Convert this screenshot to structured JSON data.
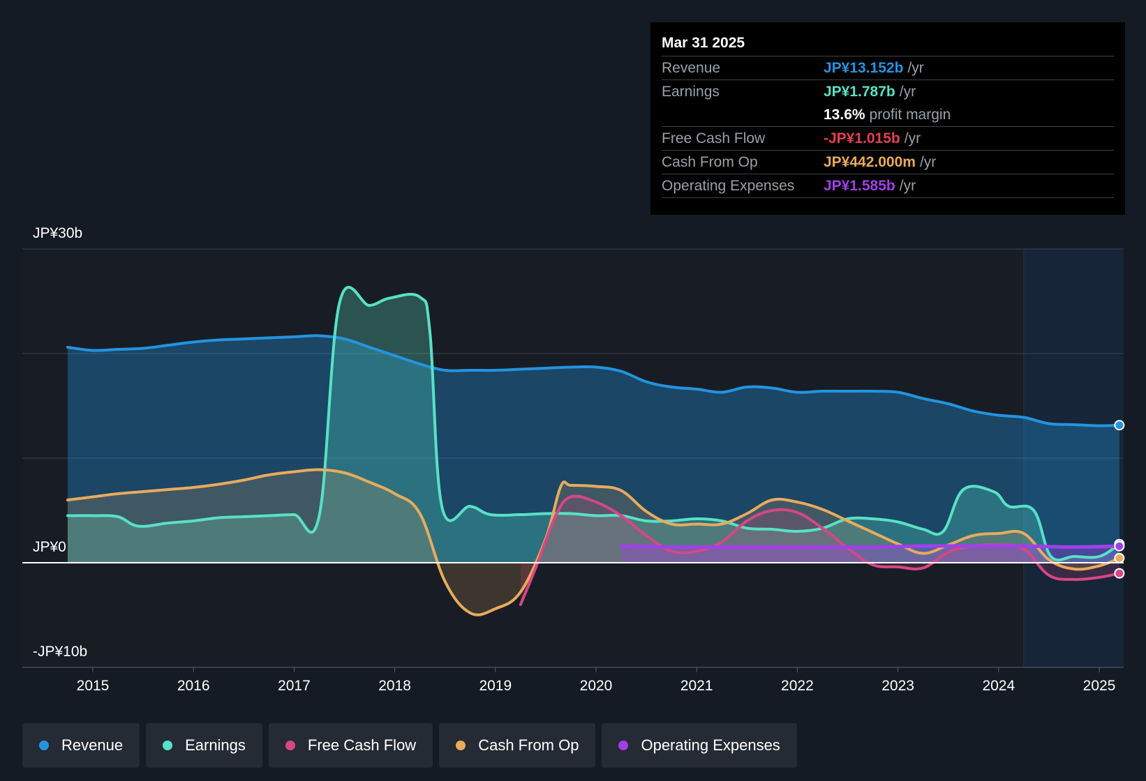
{
  "chart_data": {
    "type": "area",
    "y_unit": "JP¥ billions",
    "ylim": [
      -10,
      30
    ],
    "y_tick_labels": [
      {
        "value": 30,
        "label": "JP¥30b"
      },
      {
        "value": 0,
        "label": "JP¥0"
      },
      {
        "value": -10,
        "label": "-JP¥10b"
      }
    ],
    "y_gridlines": [
      30,
      20,
      10,
      0,
      -10
    ],
    "xlim": [
      2014.3,
      2025.25
    ],
    "x_ticks": [
      2015,
      2016,
      2017,
      2018,
      2019,
      2020,
      2021,
      2022,
      2023,
      2024,
      2025
    ],
    "forecast_start": 2024.25,
    "series": [
      {
        "name": "Revenue",
        "color": "#2394df",
        "fill": true,
        "points": [
          [
            2014.75,
            20.6
          ],
          [
            2015.0,
            20.3
          ],
          [
            2015.25,
            20.4
          ],
          [
            2015.5,
            20.5
          ],
          [
            2015.75,
            20.8
          ],
          [
            2016.0,
            21.1
          ],
          [
            2016.25,
            21.3
          ],
          [
            2016.5,
            21.4
          ],
          [
            2016.75,
            21.5
          ],
          [
            2017.0,
            21.6
          ],
          [
            2017.25,
            21.7
          ],
          [
            2017.5,
            21.4
          ],
          [
            2017.75,
            20.6
          ],
          [
            2018.0,
            19.8
          ],
          [
            2018.25,
            19.0
          ],
          [
            2018.5,
            18.4
          ],
          [
            2018.75,
            18.4
          ],
          [
            2019.0,
            18.4
          ],
          [
            2019.25,
            18.5
          ],
          [
            2019.5,
            18.6
          ],
          [
            2019.75,
            18.7
          ],
          [
            2020.0,
            18.7
          ],
          [
            2020.25,
            18.3
          ],
          [
            2020.5,
            17.3
          ],
          [
            2020.75,
            16.8
          ],
          [
            2021.0,
            16.6
          ],
          [
            2021.25,
            16.3
          ],
          [
            2021.5,
            16.8
          ],
          [
            2021.75,
            16.7
          ],
          [
            2022.0,
            16.3
          ],
          [
            2022.25,
            16.4
          ],
          [
            2022.5,
            16.4
          ],
          [
            2022.75,
            16.4
          ],
          [
            2023.0,
            16.3
          ],
          [
            2023.25,
            15.7
          ],
          [
            2023.5,
            15.2
          ],
          [
            2023.75,
            14.5
          ],
          [
            2024.0,
            14.1
          ],
          [
            2024.25,
            13.9
          ],
          [
            2024.5,
            13.3
          ],
          [
            2024.75,
            13.2
          ],
          [
            2025.0,
            13.1
          ],
          [
            2025.2,
            13.15
          ]
        ]
      },
      {
        "name": "Earnings",
        "color": "#58e1c5",
        "fill": true,
        "points": [
          [
            2014.75,
            4.5
          ],
          [
            2015.0,
            4.5
          ],
          [
            2015.25,
            4.4
          ],
          [
            2015.45,
            3.5
          ],
          [
            2015.75,
            3.8
          ],
          [
            2016.0,
            4.0
          ],
          [
            2016.25,
            4.3
          ],
          [
            2016.5,
            4.4
          ],
          [
            2016.75,
            4.5
          ],
          [
            2017.0,
            4.6
          ],
          [
            2017.25,
            4.5
          ],
          [
            2017.45,
            24.8
          ],
          [
            2017.75,
            24.6
          ],
          [
            2017.95,
            25.3
          ],
          [
            2018.25,
            25.4
          ],
          [
            2018.35,
            22.0
          ],
          [
            2018.47,
            5.3
          ],
          [
            2018.75,
            5.4
          ],
          [
            2018.95,
            4.6
          ],
          [
            2019.25,
            4.6
          ],
          [
            2019.5,
            4.7
          ],
          [
            2019.75,
            4.7
          ],
          [
            2020.0,
            4.5
          ],
          [
            2020.25,
            4.5
          ],
          [
            2020.5,
            4.0
          ],
          [
            2020.75,
            4.0
          ],
          [
            2021.0,
            4.2
          ],
          [
            2021.25,
            4.0
          ],
          [
            2021.5,
            3.3
          ],
          [
            2021.75,
            3.2
          ],
          [
            2022.0,
            3.0
          ],
          [
            2022.25,
            3.3
          ],
          [
            2022.5,
            4.2
          ],
          [
            2022.75,
            4.2
          ],
          [
            2023.0,
            3.9
          ],
          [
            2023.25,
            3.2
          ],
          [
            2023.45,
            3.0
          ],
          [
            2023.65,
            7.0
          ],
          [
            2023.95,
            6.8
          ],
          [
            2024.1,
            5.4
          ],
          [
            2024.35,
            5.0
          ],
          [
            2024.52,
            0.6
          ],
          [
            2024.75,
            0.6
          ],
          [
            2025.0,
            0.6
          ],
          [
            2025.2,
            1.787
          ]
        ]
      },
      {
        "name": "Free Cash Flow",
        "color": "#d64785",
        "fill": true,
        "points": [
          [
            2019.25,
            -4.0
          ],
          [
            2019.4,
            -0.5
          ],
          [
            2019.6,
            4.5
          ],
          [
            2019.75,
            6.3
          ],
          [
            2020.0,
            5.8
          ],
          [
            2020.25,
            4.5
          ],
          [
            2020.5,
            2.6
          ],
          [
            2020.75,
            1.1
          ],
          [
            2021.0,
            1.1
          ],
          [
            2021.25,
            2.0
          ],
          [
            2021.5,
            4.0
          ],
          [
            2021.75,
            5.0
          ],
          [
            2022.0,
            4.8
          ],
          [
            2022.25,
            3.3
          ],
          [
            2022.5,
            1.4
          ],
          [
            2022.75,
            -0.2
          ],
          [
            2023.0,
            -0.4
          ],
          [
            2023.25,
            -0.5
          ],
          [
            2023.5,
            1.0
          ],
          [
            2023.75,
            1.6
          ],
          [
            2024.0,
            1.7
          ],
          [
            2024.25,
            1.3
          ],
          [
            2024.5,
            -1.2
          ],
          [
            2024.75,
            -1.6
          ],
          [
            2025.0,
            -1.4
          ],
          [
            2025.2,
            -1.015
          ]
        ]
      },
      {
        "name": "Cash From Op",
        "color": "#e8ab5d",
        "fill": true,
        "points": [
          [
            2014.75,
            6.0
          ],
          [
            2015.0,
            6.3
          ],
          [
            2015.25,
            6.6
          ],
          [
            2015.5,
            6.8
          ],
          [
            2015.75,
            7.0
          ],
          [
            2016.0,
            7.2
          ],
          [
            2016.25,
            7.5
          ],
          [
            2016.5,
            7.9
          ],
          [
            2016.75,
            8.4
          ],
          [
            2017.0,
            8.7
          ],
          [
            2017.25,
            8.9
          ],
          [
            2017.5,
            8.6
          ],
          [
            2017.75,
            7.7
          ],
          [
            2018.0,
            6.6
          ],
          [
            2018.25,
            4.7
          ],
          [
            2018.5,
            -1.8
          ],
          [
            2018.75,
            -4.8
          ],
          [
            2019.0,
            -4.4
          ],
          [
            2019.25,
            -2.8
          ],
          [
            2019.5,
            2.3
          ],
          [
            2019.65,
            7.3
          ],
          [
            2019.75,
            7.4
          ],
          [
            2020.0,
            7.3
          ],
          [
            2020.25,
            6.9
          ],
          [
            2020.5,
            4.9
          ],
          [
            2020.75,
            3.7
          ],
          [
            2021.0,
            3.7
          ],
          [
            2021.25,
            3.7
          ],
          [
            2021.5,
            4.7
          ],
          [
            2021.75,
            6.0
          ],
          [
            2022.0,
            5.8
          ],
          [
            2022.25,
            5.1
          ],
          [
            2022.5,
            4.0
          ],
          [
            2022.75,
            2.9
          ],
          [
            2023.0,
            1.8
          ],
          [
            2023.25,
            0.9
          ],
          [
            2023.5,
            1.7
          ],
          [
            2023.75,
            2.6
          ],
          [
            2024.0,
            2.8
          ],
          [
            2024.25,
            2.8
          ],
          [
            2024.5,
            0.3
          ],
          [
            2024.75,
            -0.6
          ],
          [
            2025.0,
            -0.3
          ],
          [
            2025.2,
            0.442
          ]
        ]
      },
      {
        "name": "Operating Expenses",
        "color": "#a040e8",
        "fill": true,
        "points": [
          [
            2020.25,
            1.6
          ],
          [
            2020.75,
            1.5
          ],
          [
            2021.25,
            1.5
          ],
          [
            2021.75,
            1.5
          ],
          [
            2022.25,
            1.5
          ],
          [
            2022.75,
            1.5
          ],
          [
            2023.25,
            1.6
          ],
          [
            2023.75,
            1.6
          ],
          [
            2024.25,
            1.6
          ],
          [
            2024.75,
            1.5
          ],
          [
            2025.2,
            1.585
          ]
        ]
      }
    ]
  },
  "tooltip": {
    "date": "Mar 31 2025",
    "rows": [
      {
        "name": "Revenue",
        "value": "JP¥13.152b",
        "unit": "/yr",
        "color": "#2394df"
      },
      {
        "name": "Earnings",
        "value": "JP¥1.787b",
        "unit": "/yr",
        "color": "#58e1c5"
      },
      {
        "name": "",
        "value": "13.6%",
        "unit": "profit margin",
        "color": "#ffffff"
      },
      {
        "name": "Free Cash Flow",
        "value": "-JP¥1.015b",
        "unit": "/yr",
        "color": "#e5404f"
      },
      {
        "name": "Cash From Op",
        "value": "JP¥442.000m",
        "unit": "/yr",
        "color": "#e8ab5d"
      },
      {
        "name": "Operating Expenses",
        "value": "JP¥1.585b",
        "unit": "/yr",
        "color": "#a040e8"
      }
    ]
  },
  "legend": [
    {
      "label": "Revenue",
      "color": "#2394df"
    },
    {
      "label": "Earnings",
      "color": "#58e1c5"
    },
    {
      "label": "Free Cash Flow",
      "color": "#d64785"
    },
    {
      "label": "Cash From Op",
      "color": "#e8ab5d"
    },
    {
      "label": "Operating Expenses",
      "color": "#a040e8"
    }
  ]
}
